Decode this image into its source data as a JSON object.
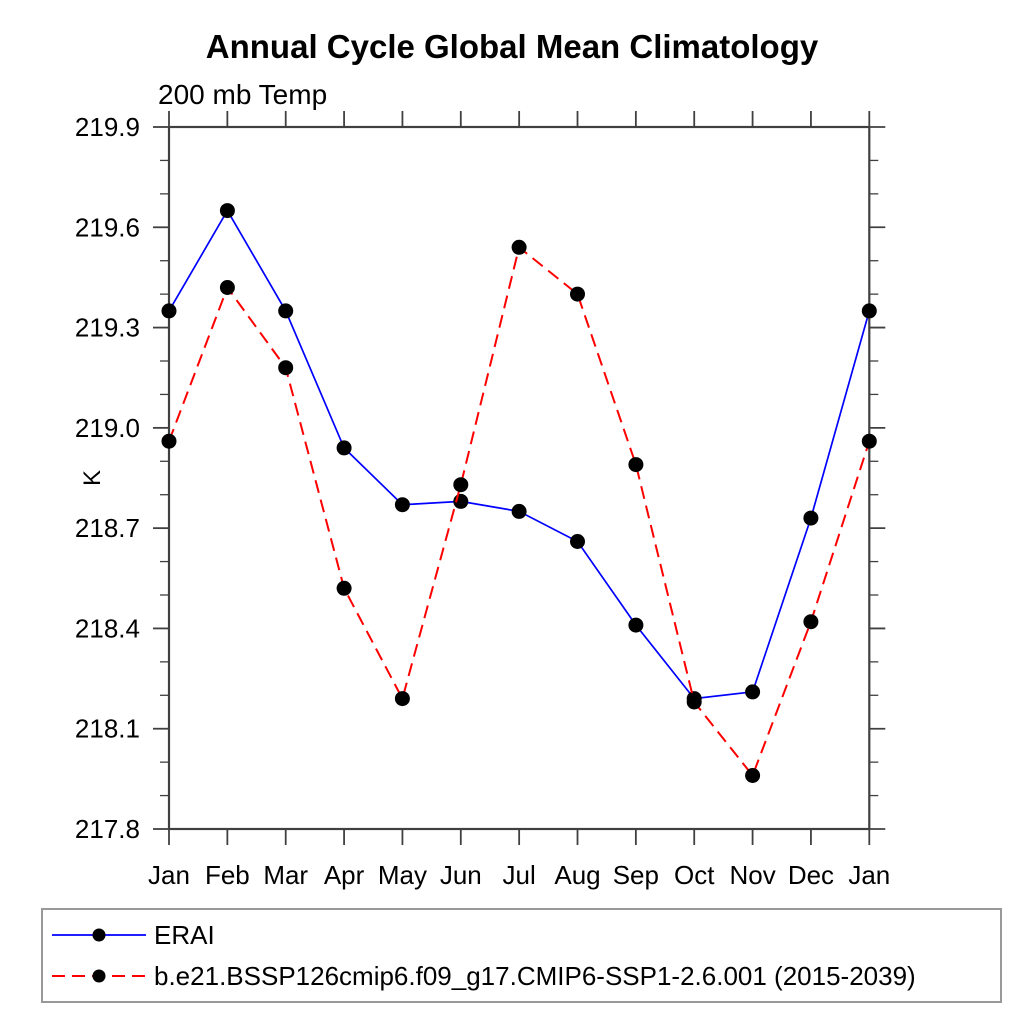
{
  "chart_data": {
    "type": "line",
    "title": "Annual Cycle Global Mean Climatology",
    "subtitle": "200 mb Temp",
    "ylabel": "K",
    "xlabel": "",
    "categories": [
      "Jan",
      "Feb",
      "Mar",
      "Apr",
      "May",
      "Jun",
      "Jul",
      "Aug",
      "Sep",
      "Oct",
      "Nov",
      "Dec",
      "Jan"
    ],
    "ylim": [
      217.8,
      219.9
    ],
    "ytick_major_step": 0.3,
    "ytick_minor_step": 0.1,
    "ytick_labels": [
      "219.9",
      "219.6",
      "219.3",
      "219.0",
      "218.7",
      "218.4",
      "218.1",
      "217.8"
    ],
    "grid": false,
    "legend_position": "bottom-left-box",
    "axis_color": "#404040",
    "marker_color": "#000000",
    "series": [
      {
        "name": "ERAI",
        "color": "#0000ff",
        "line_style": "solid",
        "marker": "filled-circle",
        "values": [
          219.35,
          219.65,
          219.35,
          218.94,
          218.77,
          218.78,
          218.75,
          218.66,
          218.41,
          218.19,
          218.21,
          218.73,
          219.35
        ]
      },
      {
        "name": "b.e21.BSSP126cmip6.f09_g17.CMIP6-SSP1-2.6.001 (2015-2039)",
        "color": "#ff0000",
        "line_style": "dashed",
        "marker": "filled-circle",
        "values": [
          218.96,
          219.42,
          219.18,
          218.52,
          218.19,
          218.83,
          219.54,
          219.4,
          218.89,
          218.18,
          217.96,
          218.42,
          218.96
        ]
      }
    ]
  }
}
